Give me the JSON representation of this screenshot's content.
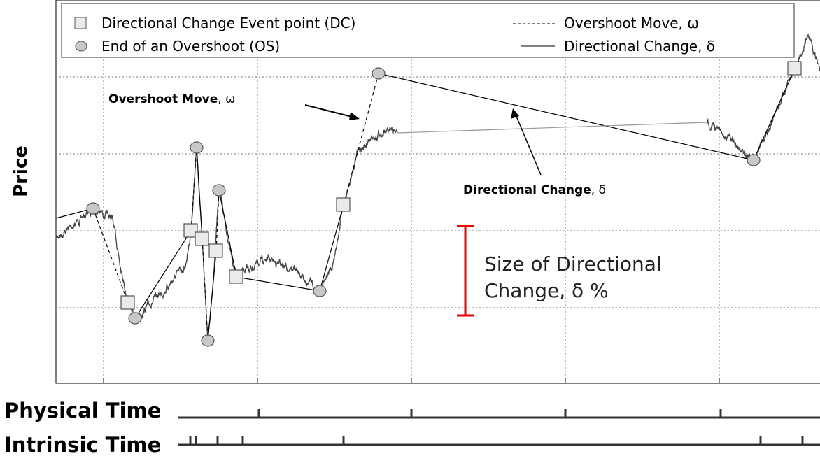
{
  "axis": {
    "y_label": "Price"
  },
  "legend": {
    "items": [
      "Directional Change Event point (DC)",
      "End of an Overshoot (OS)",
      "Overshoot Move, ω",
      "Directional Change, δ"
    ]
  },
  "annotations": {
    "overshoot": {
      "bold": "Overshoot Move",
      "rest": ", ω"
    },
    "directional_change": {
      "bold": "Directional Change",
      "rest": ", δ"
    },
    "size": [
      "Size of Directional",
      "Change, δ %"
    ]
  },
  "time_axes": {
    "physical": "Physical Time",
    "intrinsic": "Intrinsic Time"
  }
}
